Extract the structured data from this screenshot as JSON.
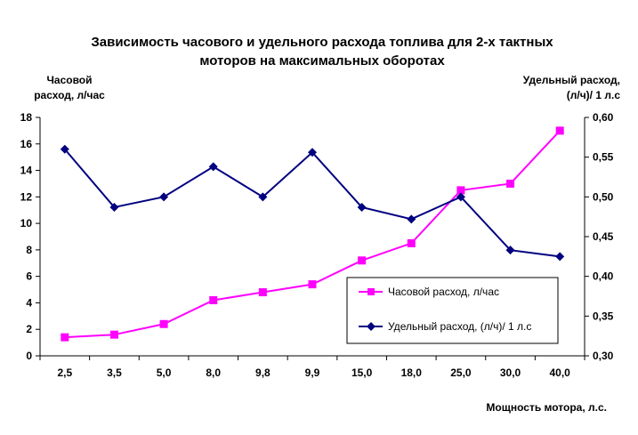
{
  "chart_data": {
    "type": "line",
    "title_line1": "Зависимость часового и удельного расхода топлива для 2-х тактных",
    "title_line2": "моторов на максимальных оборотах",
    "ylabel_left_line1": "Часовой",
    "ylabel_left_line2": "расход, л/час",
    "ylabel_right_line1": "Удельный расход,",
    "ylabel_right_line2": "(л/ч)/ 1 л.с",
    "xlabel": "Мощность мотора, л.с.",
    "categories": [
      "2,5",
      "3,5",
      "5,0",
      "8,0",
      "9,8",
      "9,9",
      "15,0",
      "18,0",
      "25,0",
      "30,0",
      "40,0"
    ],
    "ylim_left": [
      0,
      18
    ],
    "yticks_left": [
      "0",
      "2",
      "4",
      "6",
      "8",
      "10",
      "12",
      "14",
      "16",
      "18"
    ],
    "ylim_right": [
      0.3,
      0.6
    ],
    "yticks_right": [
      "0,30",
      "0,35",
      "0,40",
      "0,45",
      "0,50",
      "0,55",
      "0,60"
    ],
    "series": [
      {
        "name": "Часовой расход, л/час",
        "axis": "left",
        "color": "#ff00ff",
        "marker": "square",
        "values": [
          1.4,
          1.6,
          2.4,
          4.2,
          4.8,
          5.4,
          7.2,
          8.5,
          12.5,
          13.0,
          17.0
        ]
      },
      {
        "name": "Удельный расход, (л/ч)/ 1 л.с",
        "axis": "right",
        "color": "#000080",
        "marker": "diamond",
        "values": [
          0.56,
          0.487,
          0.5,
          0.538,
          0.5,
          0.556,
          0.487,
          0.472,
          0.5,
          0.433,
          0.425
        ]
      }
    ],
    "legend_position": "lower-right",
    "grid": false
  }
}
